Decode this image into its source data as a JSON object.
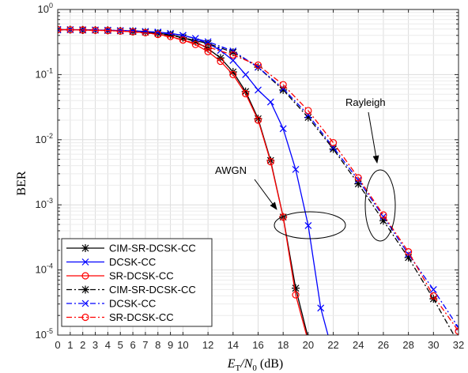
{
  "chart_data": {
    "type": "line",
    "title": "",
    "xlabel": {
      "prefix": "E",
      "sub1": "T",
      "mid": "/N",
      "sub2": "0",
      "suffix": " (dB)"
    },
    "ylabel": "BER",
    "xlim": [
      0,
      32
    ],
    "ylim": [
      1e-05,
      1
    ],
    "yscale": "log",
    "grid": true,
    "legend_position": "bottom-left",
    "x_ticks": [
      "0",
      "1",
      "2",
      "3",
      "4",
      "5",
      "6",
      "7",
      "8",
      "9",
      "10",
      "12",
      "14",
      "16",
      "18",
      "20",
      "22",
      "24",
      "26",
      "28",
      "30",
      "32"
    ],
    "y_ticks": [
      {
        "base": "10",
        "exp": "0"
      },
      {
        "base": "10",
        "exp": "-1"
      },
      {
        "base": "10",
        "exp": "-2"
      },
      {
        "base": "10",
        "exp": "-3"
      },
      {
        "base": "10",
        "exp": "-4"
      },
      {
        "base": "10",
        "exp": "-5"
      }
    ],
    "annotations": [
      {
        "text": "AWGN"
      },
      {
        "text": "Rayleigh"
      }
    ],
    "series": [
      {
        "name": "CIM-SR-DCSK-CC",
        "color": "#000000",
        "dash": "solid",
        "marker": "star",
        "x": [
          0,
          1,
          2,
          3,
          4,
          5,
          6,
          7,
          8,
          9,
          10,
          11,
          12,
          13,
          14,
          15,
          16,
          17,
          18,
          19,
          20
        ],
        "y": [
          0.49,
          0.49,
          0.485,
          0.482,
          0.478,
          0.47,
          0.46,
          0.45,
          0.43,
          0.41,
          0.37,
          0.32,
          0.25,
          0.18,
          0.11,
          0.055,
          0.021,
          0.0048,
          0.00065,
          5.25e-05,
          9e-06
        ]
      },
      {
        "name": "DCSK-CC",
        "color": "#0000ff",
        "dash": "solid",
        "marker": "x",
        "x": [
          0,
          1,
          2,
          3,
          4,
          5,
          6,
          7,
          8,
          9,
          10,
          11,
          12,
          13,
          14,
          15,
          16,
          17,
          18,
          19,
          20,
          21,
          22
        ],
        "y": [
          0.49,
          0.49,
          0.488,
          0.485,
          0.48,
          0.475,
          0.47,
          0.46,
          0.45,
          0.43,
          0.4,
          0.36,
          0.3,
          0.235,
          0.165,
          0.1,
          0.058,
          0.038,
          0.0148,
          0.0035,
          0.00048,
          2.6e-05,
          5e-06
        ]
      },
      {
        "name": "SR-DCSK-CC",
        "color": "#ff0000",
        "dash": "solid",
        "marker": "circle",
        "x": [
          0,
          1,
          2,
          3,
          4,
          5,
          6,
          7,
          8,
          9,
          10,
          11,
          12,
          13,
          14,
          15,
          16,
          17,
          18,
          19,
          20
        ],
        "y": [
          0.49,
          0.488,
          0.484,
          0.48,
          0.475,
          0.466,
          0.455,
          0.44,
          0.415,
          0.385,
          0.34,
          0.29,
          0.225,
          0.16,
          0.1,
          0.051,
          0.02,
          0.0046,
          0.00065,
          4.15e-05,
          8e-06
        ]
      },
      {
        "name": "CIM-SR-DCSK-CC",
        "color": "#000000",
        "dash": "dashdot",
        "marker": "star",
        "x": [
          0,
          2,
          4,
          6,
          8,
          10,
          12,
          14,
          16,
          18,
          20,
          22,
          24,
          26,
          28,
          30,
          32
        ],
        "y": [
          0.49,
          0.485,
          0.478,
          0.46,
          0.43,
          0.37,
          0.3,
          0.22,
          0.13,
          0.058,
          0.022,
          0.0072,
          0.0021,
          0.00057,
          0.000155,
          3.6e-05,
          7.5e-06
        ]
      },
      {
        "name": "DCSK-CC",
        "color": "#0000ff",
        "dash": "dashdot",
        "marker": "x",
        "x": [
          0,
          2,
          4,
          6,
          8,
          10,
          12,
          14,
          16,
          18,
          20,
          22,
          24,
          26,
          28,
          30,
          32
        ],
        "y": [
          0.49,
          0.487,
          0.48,
          0.47,
          0.445,
          0.4,
          0.32,
          0.23,
          0.13,
          0.061,
          0.024,
          0.0076,
          0.0024,
          0.00066,
          0.000175,
          5e-05,
          1.3e-05
        ]
      },
      {
        "name": "SR-DCSK-CC",
        "color": "#ff0000",
        "dash": "dashdot",
        "marker": "circle",
        "x": [
          0,
          2,
          4,
          6,
          8,
          10,
          12,
          14,
          16,
          18,
          20,
          22,
          24,
          26,
          28,
          30,
          32
        ],
        "y": [
          0.49,
          0.485,
          0.475,
          0.455,
          0.415,
          0.34,
          0.265,
          0.2,
          0.14,
          0.07,
          0.028,
          0.009,
          0.0026,
          0.0007,
          0.00019,
          4e-05,
          1.15e-05
        ]
      }
    ]
  }
}
